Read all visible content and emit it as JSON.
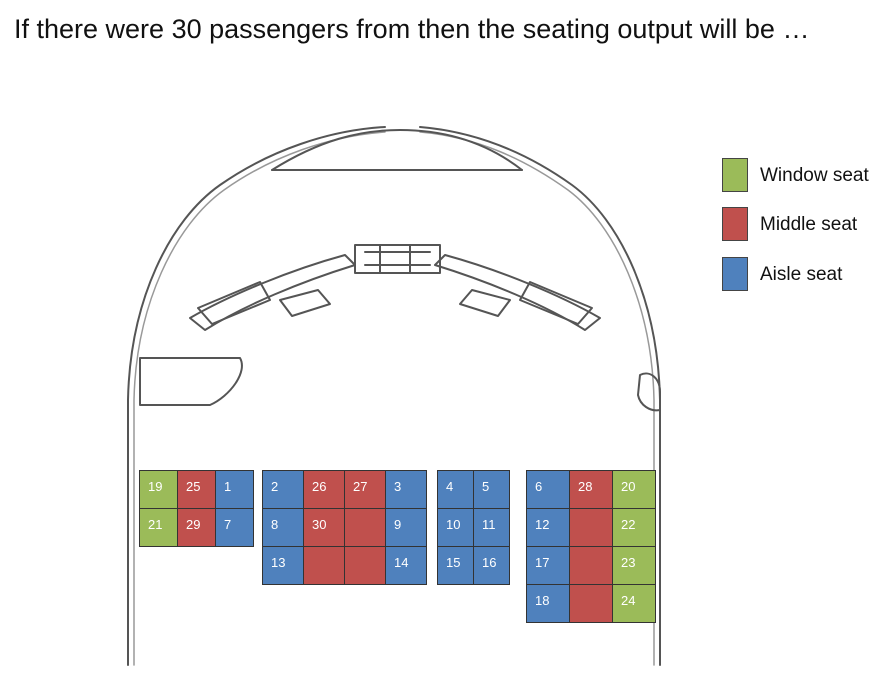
{
  "title": "If there were 30 passengers from then the seating output will be …",
  "legend": [
    {
      "label": "Window seat",
      "color": "#9bbb59"
    },
    {
      "label": "Middle seat",
      "color": "#c0504d"
    },
    {
      "label": "Aisle seat",
      "color": "#4f81bd"
    }
  ],
  "seat_blocks": [
    {
      "cols": 3,
      "rows": [
        [
          {
            "t": "window",
            "n": "19"
          },
          {
            "t": "middle",
            "n": "25"
          },
          {
            "t": "aisle",
            "n": "1"
          }
        ],
        [
          {
            "t": "window",
            "n": "21"
          },
          {
            "t": "middle",
            "n": "29"
          },
          {
            "t": "aisle",
            "n": "7"
          }
        ]
      ]
    },
    {
      "cols": 4,
      "rows": [
        [
          {
            "t": "aisle",
            "n": "2"
          },
          {
            "t": "middle",
            "n": "26"
          },
          {
            "t": "middle",
            "n": "27"
          },
          {
            "t": "aisle",
            "n": "3"
          }
        ],
        [
          {
            "t": "aisle",
            "n": "8"
          },
          {
            "t": "middle",
            "n": "30"
          },
          {
            "t": "middle",
            "n": ""
          },
          {
            "t": "aisle",
            "n": "9"
          }
        ],
        [
          {
            "t": "aisle",
            "n": "13"
          },
          {
            "t": "middle",
            "n": ""
          },
          {
            "t": "middle",
            "n": ""
          },
          {
            "t": "aisle",
            "n": "14"
          }
        ]
      ]
    },
    {
      "cols": 2,
      "rows": [
        [
          {
            "t": "aisle",
            "n": "4"
          },
          {
            "t": "aisle",
            "n": "5"
          }
        ],
        [
          {
            "t": "aisle",
            "n": "10"
          },
          {
            "t": "aisle",
            "n": "11"
          }
        ],
        [
          {
            "t": "aisle",
            "n": "15"
          },
          {
            "t": "aisle",
            "n": "16"
          }
        ]
      ]
    },
    {
      "cols": 3,
      "rows": [
        [
          {
            "t": "aisle",
            "n": "6"
          },
          {
            "t": "middle",
            "n": "28"
          },
          {
            "t": "window",
            "n": "20"
          }
        ],
        [
          {
            "t": "aisle",
            "n": "12"
          },
          {
            "t": "middle",
            "n": ""
          },
          {
            "t": "window",
            "n": "22"
          }
        ],
        [
          {
            "t": "aisle",
            "n": "17"
          },
          {
            "t": "middle",
            "n": ""
          },
          {
            "t": "window",
            "n": "23"
          }
        ],
        [
          {
            "t": "aisle",
            "n": "18"
          },
          {
            "t": "middle",
            "n": ""
          },
          {
            "t": "window",
            "n": "24"
          }
        ]
      ]
    }
  ]
}
